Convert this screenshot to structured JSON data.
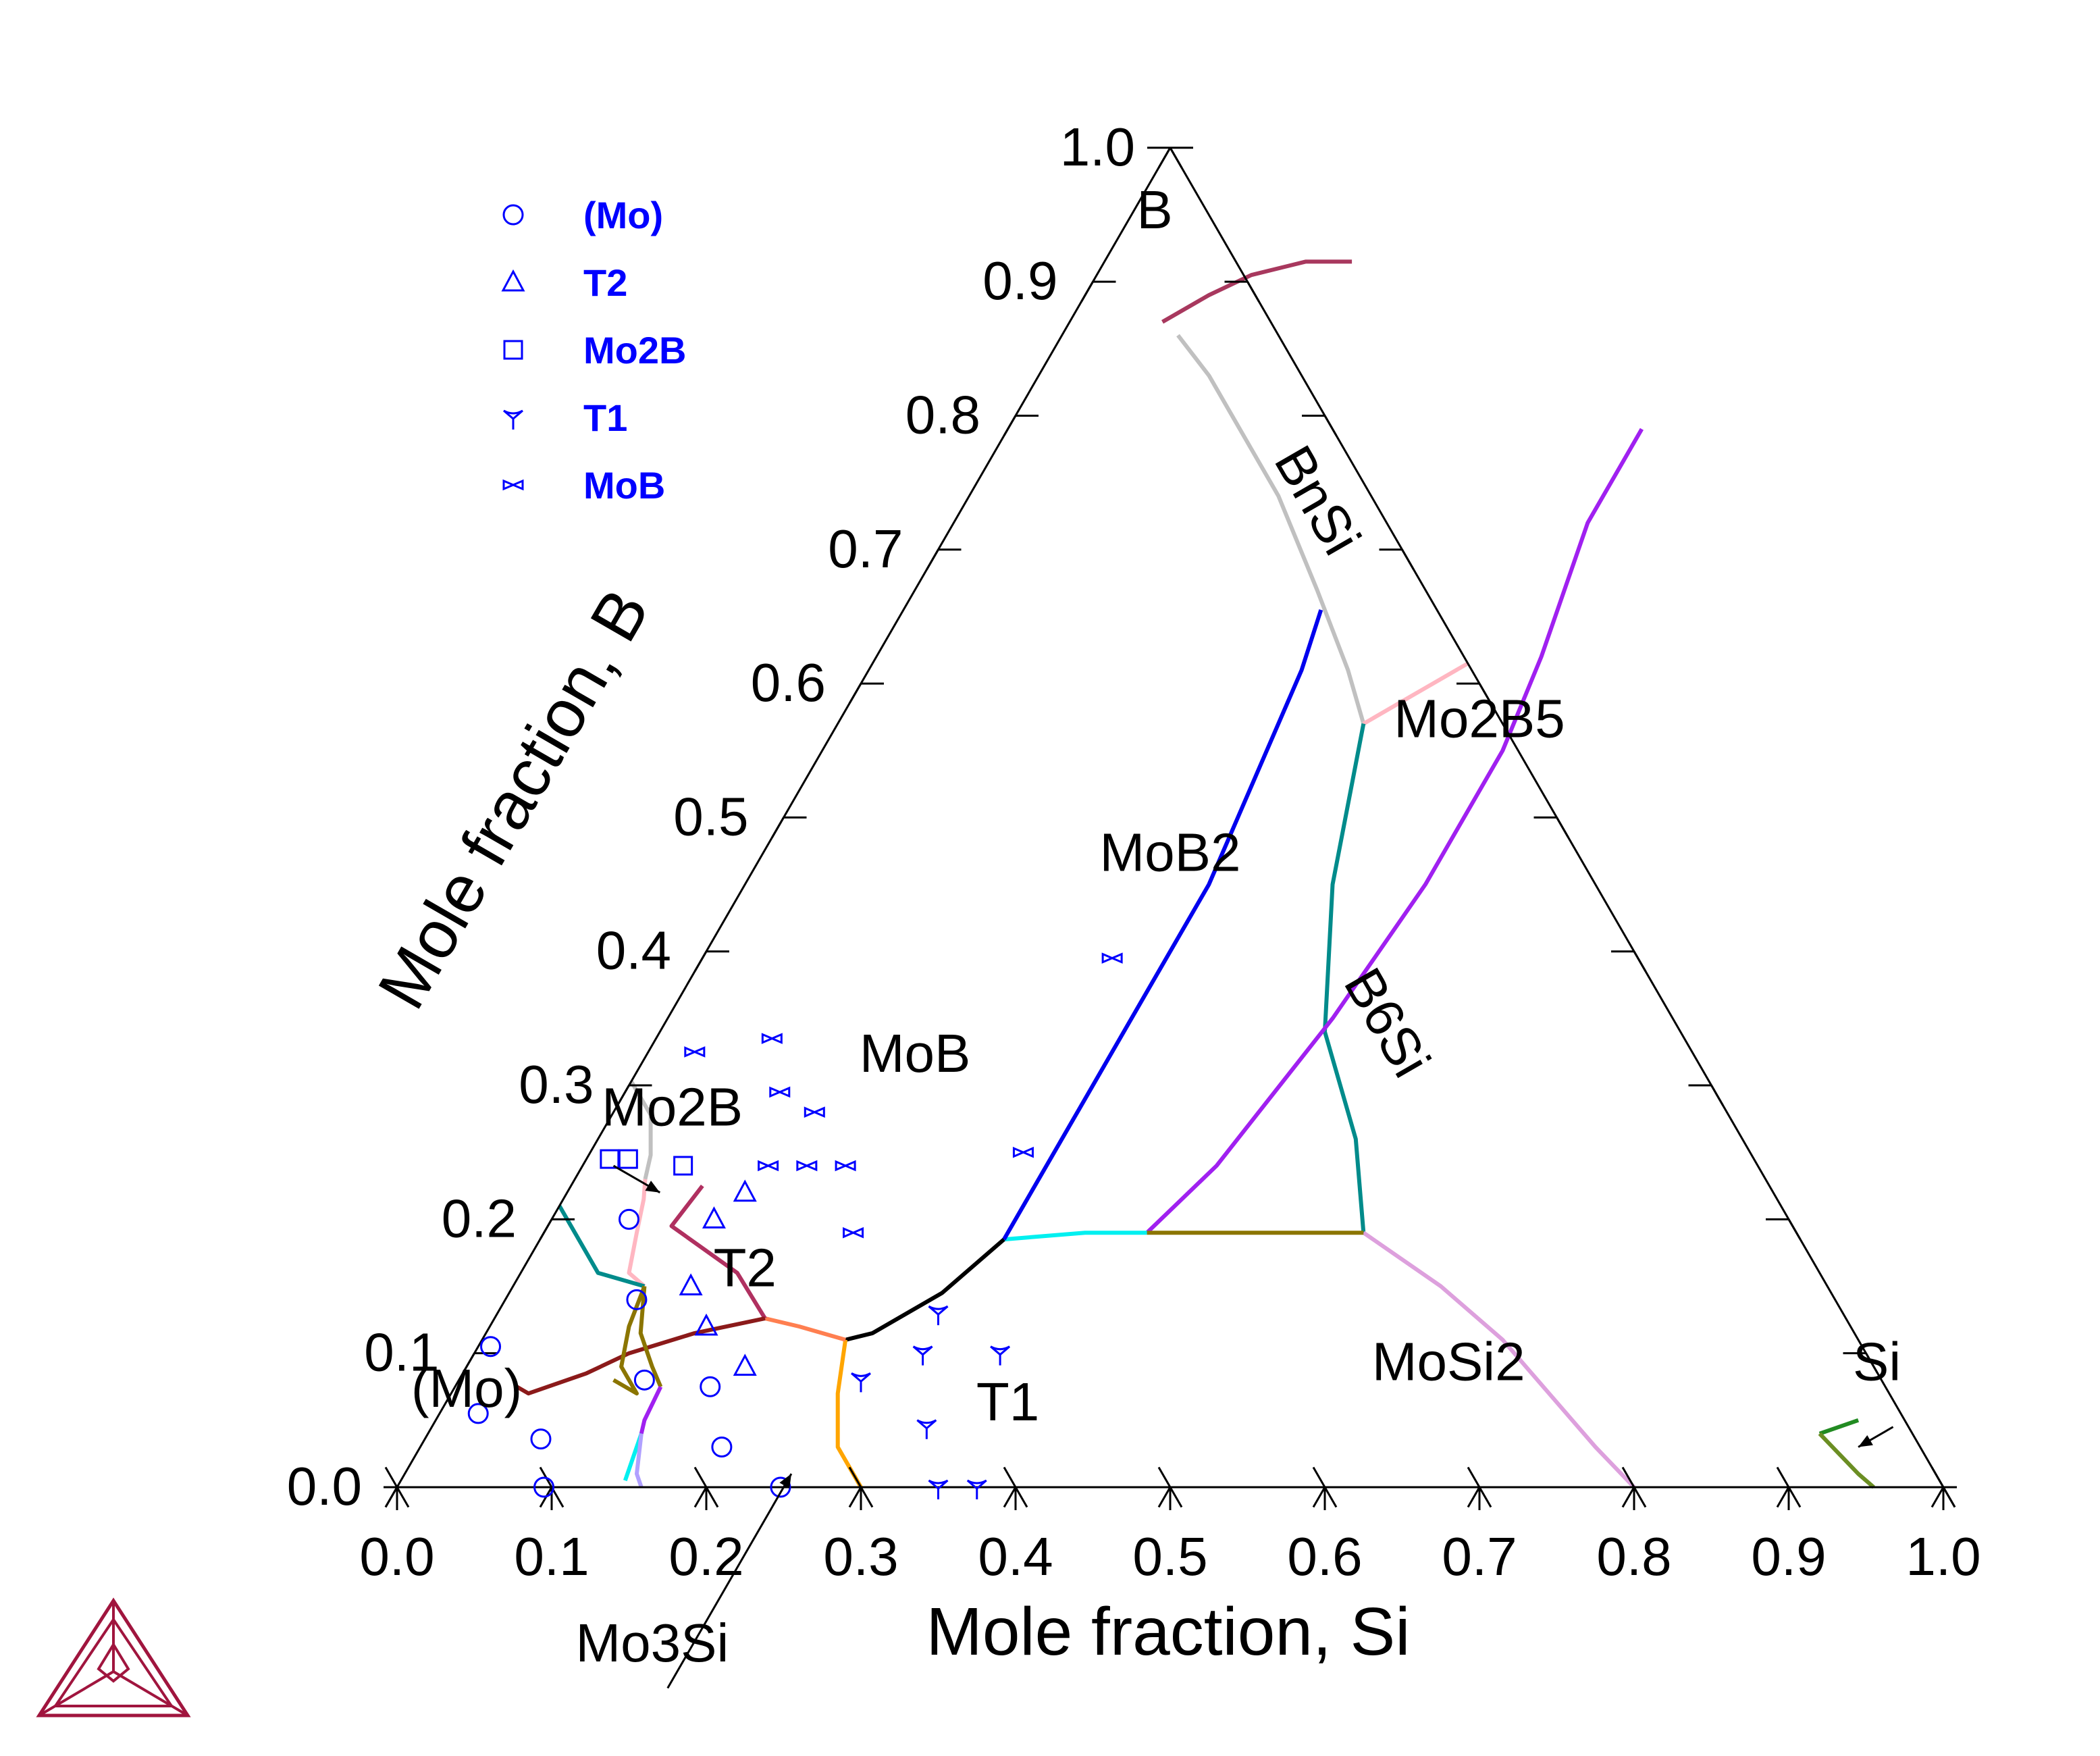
{
  "chart_data": {
    "type": "scatter",
    "diagram": "ternary isothermal section",
    "axes": {
      "bottom": {
        "label": "Mole fraction, Si",
        "ticks": [
          "0.0",
          "0.1",
          "0.2",
          "0.3",
          "0.4",
          "0.5",
          "0.6",
          "0.7",
          "0.8",
          "0.9",
          "1.0"
        ],
        "range": [
          0,
          1
        ]
      },
      "left": {
        "label": "Mole fraction, B",
        "ticks": [
          "0.0",
          "0.1",
          "0.2",
          "0.3",
          "0.4",
          "0.5",
          "0.6",
          "0.7",
          "0.8",
          "0.9",
          "1.0"
        ],
        "range": [
          0,
          1
        ]
      }
    },
    "legend": {
      "placement": "top-left",
      "items": [
        {
          "name": "(Mo)",
          "marker": "circle"
        },
        {
          "name": "T2",
          "marker": "triangle"
        },
        {
          "name": "Mo2B",
          "marker": "square"
        },
        {
          "name": "T1",
          "marker": "tri-down"
        },
        {
          "name": "MoB",
          "marker": "bowtie"
        }
      ]
    },
    "region_labels": [
      {
        "text": "B",
        "si": 0.02,
        "b": 0.94
      },
      {
        "text": "BnSi",
        "si": 0.22,
        "b": 0.73,
        "rotate": 60
      },
      {
        "text": "Mo2B5",
        "si": 0.42,
        "b": 0.56
      },
      {
        "text": "MoB2",
        "si": 0.27,
        "b": 0.46
      },
      {
        "text": "B6Si",
        "si": 0.46,
        "b": 0.34,
        "rotate": 60
      },
      {
        "text": "MoB",
        "si": 0.18,
        "b": 0.31
      },
      {
        "text": "T2",
        "si": 0.15,
        "b": 0.15
      },
      {
        "text": "(Mo)",
        "si": 0.015,
        "b": 0.06
      },
      {
        "text": "T1",
        "si": 0.37,
        "b": 0.05
      },
      {
        "text": "MoSi2",
        "si": 0.64,
        "b": 0.08
      },
      {
        "text": "Si",
        "si": 0.917,
        "b": 0.08
      },
      {
        "text": "Mo2B",
        "si": 0.043,
        "b": 0.27
      },
      {
        "text": "Mo3Si",
        "si": 0.23,
        "b": -0.13
      }
    ],
    "arrows": [
      {
        "target": "Mo2B",
        "from": [
          0.02,
          0.24
        ],
        "to": [
          0.06,
          0.22
        ]
      },
      {
        "target": "Mo3Si",
        "from": [
          0.25,
          -0.15
        ],
        "to": [
          0.25,
          0.01
        ]
      },
      {
        "target": "Si",
        "from": [
          0.945,
          0.045
        ],
        "to": [
          0.93,
          0.03
        ]
      }
    ],
    "boundaries": [
      {
        "color": "#a8385e",
        "points": [
          [
            0.06,
            0.87
          ],
          [
            0.08,
            0.89
          ],
          [
            0.1,
            0.905
          ],
          [
            0.13,
            0.915
          ],
          [
            0.16,
            0.915
          ]
        ]
      },
      {
        "color": "#c0c0c0",
        "points": [
          [
            0.075,
            0.86
          ],
          [
            0.11,
            0.83
          ],
          [
            0.15,
            0.79
          ],
          [
            0.2,
            0.74
          ],
          [
            0.26,
            0.67
          ],
          [
            0.31,
            0.61
          ],
          [
            0.34,
            0.57
          ]
        ]
      },
      {
        "color": "#ffb6c1",
        "points": [
          [
            0.34,
            0.57
          ],
          [
            0.36,
            0.59
          ],
          [
            0.385,
            0.615
          ]
        ]
      },
      {
        "color": "#008b8b",
        "points": [
          [
            0.34,
            0.57
          ],
          [
            0.38,
            0.45
          ],
          [
            0.43,
            0.34
          ],
          [
            0.49,
            0.26
          ],
          [
            0.53,
            0.19
          ]
        ]
      },
      {
        "color": "#dda0dd",
        "points": [
          [
            0.53,
            0.19
          ],
          [
            0.6,
            0.15
          ],
          [
            0.66,
            0.11
          ],
          [
            0.71,
            0.07
          ],
          [
            0.76,
            0.03
          ],
          [
            0.8,
            0
          ]
        ]
      },
      {
        "color": "#228b22",
        "points": [
          [
            0.9,
            0.04
          ],
          [
            0.92,
            0.05
          ]
        ]
      },
      {
        "color": "#6b8e23",
        "points": [
          [
            0.9,
            0.04
          ],
          [
            0.92,
            0.025
          ],
          [
            0.94,
            0.01
          ],
          [
            0.955,
            0
          ]
        ]
      },
      {
        "color": "#a020f0",
        "points": [
          [
            0.41,
            0.79
          ],
          [
            0.41,
            0.72
          ],
          [
            0.43,
            0.62
          ],
          [
            0.44,
            0.55
          ],
          [
            0.44,
            0.45
          ],
          [
            0.43,
            0.35
          ],
          [
            0.41,
            0.24
          ],
          [
            0.39,
            0.19
          ]
        ]
      },
      {
        "color": "#00f0f0",
        "points": [
          [
            0.39,
            0.19
          ],
          [
            0.35,
            0.19
          ],
          [
            0.3,
            0.185
          ]
        ]
      },
      {
        "color": "#0000ee",
        "points": [
          [
            0.27,
            0.655
          ],
          [
            0.28,
            0.61
          ],
          [
            0.29,
            0.53
          ],
          [
            0.3,
            0.45
          ],
          [
            0.3,
            0.36
          ],
          [
            0.3,
            0.28
          ],
          [
            0.3,
            0.185
          ]
        ]
      },
      {
        "color": "#8b7500",
        "points": [
          [
            0.39,
            0.19
          ],
          [
            0.46,
            0.19
          ],
          [
            0.53,
            0.19
          ]
        ]
      },
      {
        "color": "#000000",
        "points": [
          [
            0.3,
            0.185
          ],
          [
            0.28,
            0.145
          ],
          [
            0.25,
            0.115
          ],
          [
            0.235,
            0.11
          ]
        ]
      },
      {
        "color": "#ffa500",
        "points": [
          [
            0.235,
            0.11
          ],
          [
            0.25,
            0.07
          ],
          [
            0.27,
            0.03
          ],
          [
            0.3,
            0
          ]
        ]
      },
      {
        "color": "#ff7f50",
        "points": [
          [
            0.235,
            0.11
          ],
          [
            0.2,
            0.12
          ],
          [
            0.175,
            0.126
          ]
        ]
      },
      {
        "color": "#b03060",
        "points": [
          [
            0.175,
            0.126
          ],
          [
            0.14,
            0.16
          ],
          [
            0.08,
            0.195
          ],
          [
            0.085,
            0.225
          ]
        ]
      },
      {
        "color": "#8b1a1a",
        "points": [
          [
            0.175,
            0.126
          ],
          [
            0.135,
            0.115
          ],
          [
            0.1,
            0.1
          ],
          [
            0.08,
            0.085
          ],
          [
            0.05,
            0.07
          ],
          [
            0.04,
            0.075
          ]
        ]
      },
      {
        "color": "#c0c0c0",
        "points": [
          [
            0.0,
            0.303
          ],
          [
            0.025,
            0.278
          ],
          [
            0.04,
            0.248
          ],
          [
            0.0455,
            0.23
          ]
        ]
      },
      {
        "color": "#ffb6c1",
        "points": [
          [
            0.0455,
            0.23
          ],
          [
            0.052,
            0.215
          ],
          [
            0.06,
            0.19
          ],
          [
            0.07,
            0.16
          ],
          [
            0.085,
            0.15
          ]
        ]
      },
      {
        "color": "#008b8b",
        "points": [
          [
            0.0,
            0.21
          ],
          [
            0.02,
            0.19
          ],
          [
            0.05,
            0.16
          ],
          [
            0.085,
            0.15
          ]
        ]
      },
      {
        "color": "#8b7500",
        "points": [
          [
            0.085,
            0.15
          ],
          [
            0.09,
            0.12
          ],
          [
            0.1,
            0.09
          ],
          [
            0.12,
            0.07
          ],
          [
            0.1,
            0.08
          ]
        ]
      },
      {
        "color": "#8b7500",
        "points": [
          [
            0.085,
            0.15
          ],
          [
            0.1,
            0.115
          ],
          [
            0.12,
            0.09
          ],
          [
            0.133,
            0.075
          ]
        ]
      },
      {
        "color": "#a020f0",
        "points": [
          [
            0.133,
            0.075
          ],
          [
            0.135,
            0.05
          ],
          [
            0.138,
            0.04
          ]
        ]
      },
      {
        "color": "#00f0f0",
        "points": [
          [
            0.138,
            0.04
          ],
          [
            0.142,
            0.02
          ],
          [
            0.145,
            0.005
          ]
        ]
      },
      {
        "color": "#b0a0ff",
        "points": [
          [
            0.138,
            0.04
          ],
          [
            0.15,
            0.01
          ],
          [
            0.158,
            0
          ]
        ]
      }
    ],
    "points": [
      {
        "series": "(Mo)",
        "si": 0.008,
        "b": 0.105
      },
      {
        "series": "(Mo)",
        "si": 0.025,
        "b": 0.055
      },
      {
        "series": "(Mo)",
        "si": 0.095,
        "b": 0.0
      },
      {
        "series": "(Mo)",
        "si": 0.075,
        "b": 0.036
      },
      {
        "series": "(Mo)",
        "si": 0.05,
        "b": 0.2
      },
      {
        "series": "(Mo)",
        "si": 0.085,
        "b": 0.14
      },
      {
        "series": "(Mo)",
        "si": 0.12,
        "b": 0.08
      },
      {
        "series": "(Mo)",
        "si": 0.165,
        "b": 0.075
      },
      {
        "series": "(Mo)",
        "si": 0.195,
        "b": 0.03
      },
      {
        "series": "(Mo)",
        "si": 0.248,
        "b": 0.0
      },
      {
        "series": "T2",
        "si": 0.115,
        "b": 0.22
      },
      {
        "series": "T2",
        "si": 0.105,
        "b": 0.2
      },
      {
        "series": "T2",
        "si": 0.115,
        "b": 0.15
      },
      {
        "series": "T2",
        "si": 0.14,
        "b": 0.12
      },
      {
        "series": "T2",
        "si": 0.18,
        "b": 0.09
      },
      {
        "series": "Mo2B",
        "si": 0.015,
        "b": 0.245
      },
      {
        "series": "Mo2B",
        "si": 0.027,
        "b": 0.245
      },
      {
        "series": "Mo2B",
        "si": 0.065,
        "b": 0.24
      },
      {
        "series": "T1",
        "si": 0.26,
        "b": 0.08
      },
      {
        "series": "T1",
        "si": 0.285,
        "b": 0.13
      },
      {
        "series": "T1",
        "si": 0.29,
        "b": 0.1
      },
      {
        "series": "T1",
        "si": 0.34,
        "b": 0.1
      },
      {
        "series": "T1",
        "si": 0.32,
        "b": 0.045
      },
      {
        "series": "T1",
        "si": 0.35,
        "b": 0.0
      },
      {
        "series": "T1",
        "si": 0.375,
        "b": 0.0
      },
      {
        "series": "MoB",
        "si": 0.03,
        "b": 0.325
      },
      {
        "series": "MoB",
        "si": 0.075,
        "b": 0.335
      },
      {
        "series": "MoB",
        "si": 0.1,
        "b": 0.295
      },
      {
        "series": "MoB",
        "si": 0.13,
        "b": 0.28
      },
      {
        "series": "MoB",
        "si": 0.12,
        "b": 0.24
      },
      {
        "series": "MoB",
        "si": 0.145,
        "b": 0.24
      },
      {
        "series": "MoB",
        "si": 0.17,
        "b": 0.24
      },
      {
        "series": "MoB",
        "si": 0.2,
        "b": 0.19
      },
      {
        "series": "MoB",
        "si": 0.28,
        "b": 0.25
      },
      {
        "series": "MoB",
        "si": 0.265,
        "b": 0.395
      }
    ]
  },
  "logo": {
    "name": "thermo-calc-triangle-logo",
    "color": "#a0153e"
  }
}
